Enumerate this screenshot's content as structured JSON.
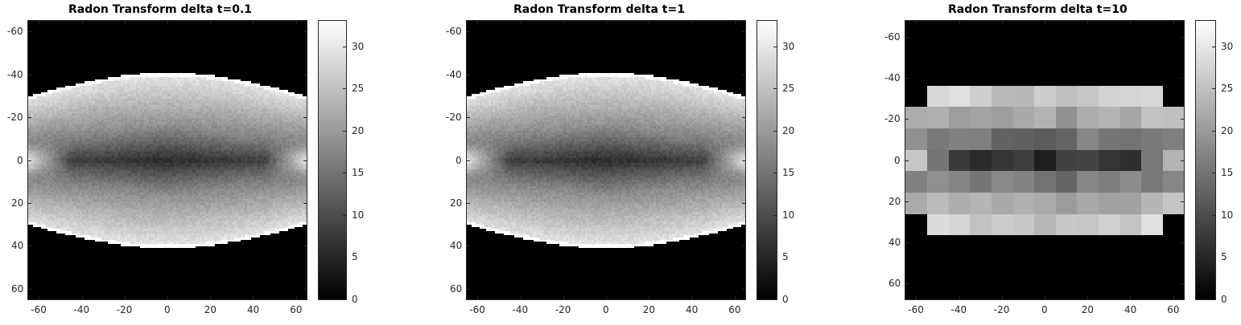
{
  "chart_data": [
    {
      "type": "heatmap",
      "title": "Radon Transform delta t=0.1",
      "xlabel": "",
      "ylabel": "",
      "xlim": [
        -65,
        65
      ],
      "ylim": [
        65,
        -65
      ],
      "x_ticks": [
        -60,
        -40,
        -20,
        0,
        20,
        40,
        60
      ],
      "y_ticks": [
        -60,
        -40,
        -20,
        0,
        20,
        40,
        60
      ],
      "colormap": "gray",
      "clim": [
        0,
        33
      ],
      "colorbar_ticks": [
        0,
        5,
        10,
        15,
        20,
        25,
        30
      ],
      "grid_cells": 130,
      "support_edge": {
        "at_center": 41,
        "at_ends": 30
      },
      "intensity_profile": {
        "edge_max": 30,
        "center_min": 10,
        "side_peak_at_zero": 31
      }
    },
    {
      "type": "heatmap",
      "title": "Radon Transform delta t=1",
      "xlabel": "",
      "ylabel": "",
      "xlim": [
        -65,
        65
      ],
      "ylim": [
        65,
        -65
      ],
      "x_ticks": [
        -60,
        -40,
        -20,
        0,
        20,
        40,
        60
      ],
      "y_ticks": [
        -60,
        -40,
        -20,
        0,
        20,
        40,
        60
      ],
      "colormap": "gray",
      "clim": [
        0,
        33
      ],
      "colorbar_ticks": [
        0,
        5,
        10,
        15,
        20,
        25,
        30
      ],
      "grid_cells": 130,
      "support_edge": {
        "at_center": 41,
        "at_ends": 30
      },
      "intensity_profile": {
        "edge_max": 30,
        "center_min": 10,
        "side_peak_at_zero": 31
      }
    },
    {
      "type": "heatmap",
      "title": "Radon Transform delta t=10",
      "xlabel": "",
      "ylabel": "",
      "xlim": [
        -65,
        65
      ],
      "ylim": [
        68,
        -68
      ],
      "x_ticks": [
        -60,
        -40,
        -20,
        0,
        20,
        40,
        60
      ],
      "y_ticks": [
        -60,
        -40,
        -20,
        0,
        20,
        40,
        60
      ],
      "colormap": "gray",
      "clim": [
        0,
        33
      ],
      "colorbar_ticks": [
        0,
        5,
        10,
        15,
        20,
        25,
        30
      ],
      "grid_cells": 13,
      "support_edge": {
        "at_center": 41,
        "at_ends": 30
      },
      "intensity_profile": {
        "edge_max": 30,
        "center_min": 10,
        "side_peak_at_zero": 31
      }
    }
  ]
}
